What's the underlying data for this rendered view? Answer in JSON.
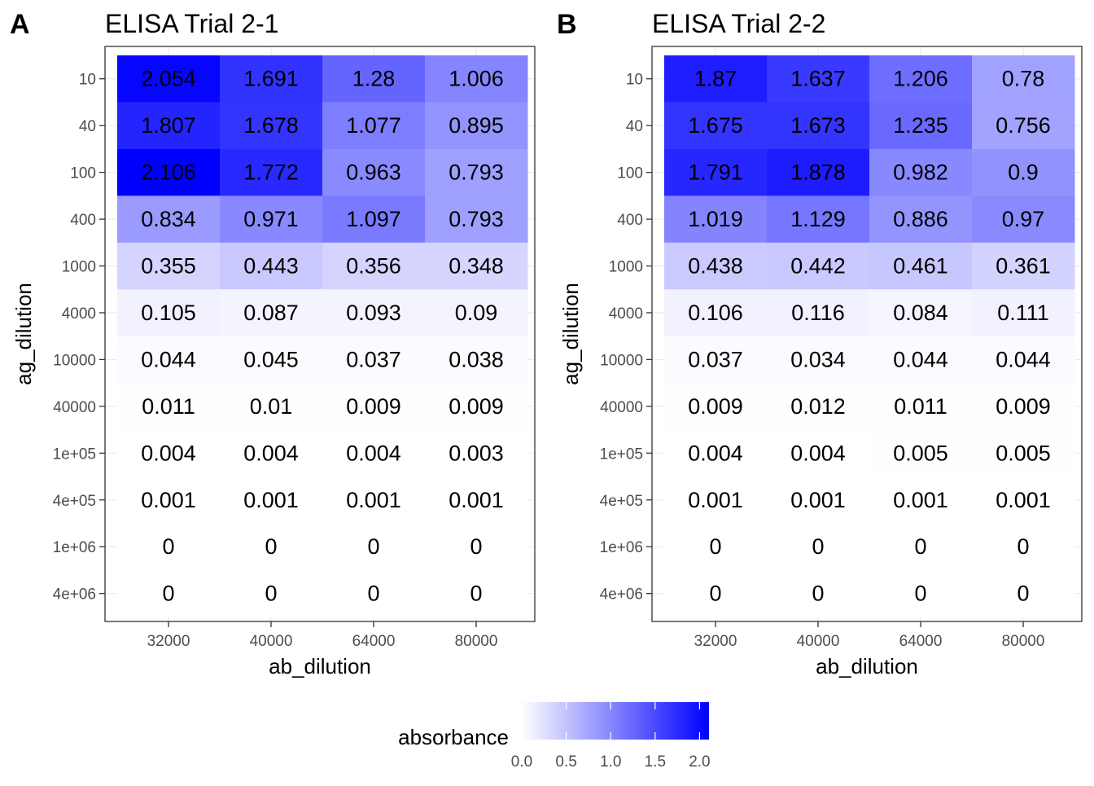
{
  "chart_data": [
    {
      "type": "heatmap",
      "tag": "A",
      "title": "ELISA Trial 2-1",
      "xlabel": "ab_dilution",
      "ylabel": "ag_dilution",
      "x_categories": [
        "32000",
        "40000",
        "64000",
        "80000"
      ],
      "y_categories": [
        "10",
        "40",
        "100",
        "400",
        "1000",
        "4000",
        "10000",
        "40000",
        "1e+05",
        "4e+05",
        "1e+06",
        "4e+06"
      ],
      "values": [
        [
          2.054,
          1.691,
          1.28,
          1.006
        ],
        [
          1.807,
          1.678,
          1.077,
          0.895
        ],
        [
          2.106,
          1.772,
          0.963,
          0.793
        ],
        [
          0.834,
          0.971,
          1.097,
          0.793
        ],
        [
          0.355,
          0.443,
          0.356,
          0.348
        ],
        [
          0.105,
          0.087,
          0.093,
          0.09
        ],
        [
          0.044,
          0.045,
          0.037,
          0.038
        ],
        [
          0.011,
          0.01,
          0.009,
          0.009
        ],
        [
          0.004,
          0.004,
          0.004,
          0.003
        ],
        [
          0.001,
          0.001,
          0.001,
          0.001
        ],
        [
          0,
          0,
          0,
          0
        ],
        [
          0,
          0,
          0,
          0
        ]
      ]
    },
    {
      "type": "heatmap",
      "tag": "B",
      "title": "ELISA Trial 2-2",
      "xlabel": "ab_dilution",
      "ylabel": "ag_dilution",
      "x_categories": [
        "32000",
        "40000",
        "64000",
        "80000"
      ],
      "y_categories": [
        "10",
        "40",
        "100",
        "400",
        "1000",
        "4000",
        "10000",
        "40000",
        "1e+05",
        "4e+05",
        "1e+06",
        "4e+06"
      ],
      "values": [
        [
          1.87,
          1.637,
          1.206,
          0.78
        ],
        [
          1.675,
          1.673,
          1.235,
          0.756
        ],
        [
          1.791,
          1.878,
          0.982,
          0.9
        ],
        [
          1.019,
          1.129,
          0.886,
          0.97
        ],
        [
          0.438,
          0.442,
          0.461,
          0.361
        ],
        [
          0.106,
          0.116,
          0.084,
          0.111
        ],
        [
          0.037,
          0.034,
          0.044,
          0.044
        ],
        [
          0.009,
          0.012,
          0.011,
          0.009
        ],
        [
          0.004,
          0.004,
          0.005,
          0.005
        ],
        [
          0.001,
          0.001,
          0.001,
          0.001
        ],
        [
          0,
          0,
          0,
          0
        ],
        [
          0,
          0,
          0,
          0
        ]
      ]
    }
  ],
  "legend": {
    "title": "absorbance",
    "ticks": [
      "0.0",
      "0.5",
      "1.0",
      "1.5",
      "2.0"
    ],
    "tick_values": [
      0,
      0.5,
      1.0,
      1.5,
      2.0
    ],
    "min": 0,
    "max": 2.106,
    "color_low": "#ffffff",
    "color_high": "#0000ff"
  }
}
